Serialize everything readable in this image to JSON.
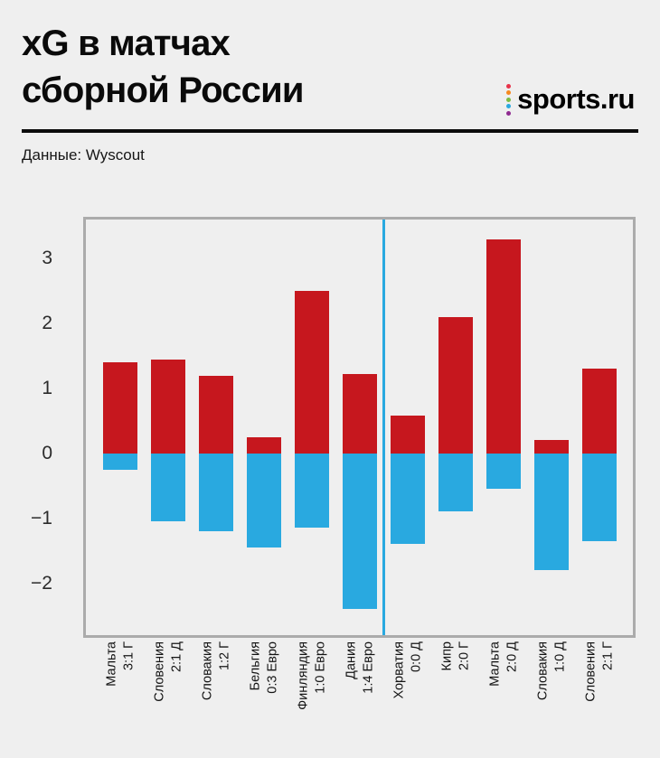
{
  "header": {
    "title_line1": "xG в матчах",
    "title_line2": "сборной России",
    "source": "Данные: Wyscout",
    "logo": {
      "text": "sports.ru",
      "dot_colors": [
        "#e8334a",
        "#f6891f",
        "#7dbb42",
        "#2aa9e0",
        "#8f2a90"
      ]
    }
  },
  "chart_data": {
    "type": "bar",
    "title": "xG в матчах сборной России",
    "source_note": "Данные: Wyscout",
    "categories": [
      "Мальта",
      "Словения",
      "Словакия",
      "Бельгия",
      "Финляндия",
      "Дания",
      "Хорватия",
      "Кипр",
      "Мальта",
      "Словакия",
      "Словения"
    ],
    "category_scores": [
      "3:1 Г",
      "2:1 Д",
      "1:2 Г",
      "0:3 Евро",
      "1:0 Евро",
      "1:4 Евро",
      "0:0 Д",
      "2:0 Г",
      "2:0 Д",
      "1:0 Д",
      "2:1 Г"
    ],
    "series": [
      {
        "name": "xG positive (red, above zero)",
        "color": "#c6171e",
        "values": [
          1.4,
          1.45,
          1.2,
          0.25,
          2.5,
          1.22,
          0.58,
          2.1,
          3.3,
          0.2,
          1.3
        ]
      },
      {
        "name": "xG negative (blue, below zero)",
        "color": "#29a9e0",
        "values": [
          -0.25,
          -1.05,
          -1.2,
          -1.45,
          -1.15,
          -2.4,
          -1.4,
          -0.9,
          -0.55,
          -1.8,
          -1.35
        ]
      }
    ],
    "separator_after_index": 5,
    "separator_color": "#29a9e0",
    "ylim": [
      -2.8,
      3.6
    ],
    "yticks": [
      3,
      2,
      1,
      0,
      -1,
      -2
    ],
    "ytick_labels": [
      "3",
      "2",
      "1",
      "0",
      "−1",
      "−2"
    ],
    "grid": false,
    "legend": "none",
    "frame_color": "#ababab",
    "background": "#efefef"
  }
}
